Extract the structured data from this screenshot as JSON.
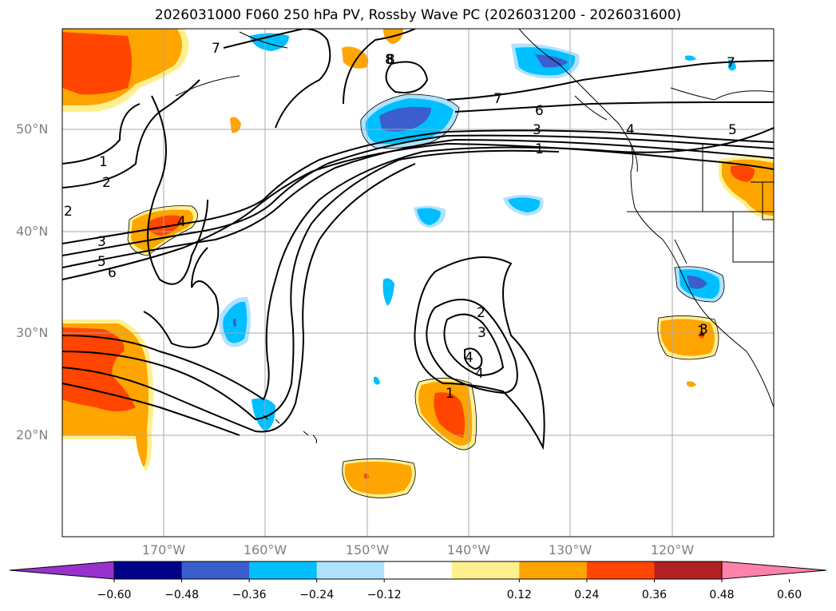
{
  "title": "2026031000 F060 250 hPa PV, Rossby Wave PC (2026031200 - 2026031600)",
  "lat_labels": [
    "50°N",
    "40°N",
    "30°N",
    "20°N"
  ],
  "lon_labels": [
    "170°W",
    "160°W",
    "150°W",
    "140°W",
    "130°W",
    "120°W"
  ],
  "colorbar": {
    "ticks": [
      "−0.60",
      "−0.48",
      "−0.36",
      "−0.24",
      "−0.12",
      "0.12",
      "0.24",
      "0.36",
      "0.48",
      "0.60"
    ],
    "colors": [
      "#9932cc",
      "#00008b",
      "#3a5fcd",
      "#00bfff",
      "#b0e2ff",
      "#ffffff",
      "#fff08f",
      "#ffa500",
      "#ff4500",
      "#b22222",
      "#ff82ab"
    ]
  },
  "contour_labels": [
    "1",
    "2",
    "3",
    "5",
    "6",
    "7",
    "8",
    "1",
    "2",
    "3",
    "4",
    "6",
    "7",
    "1",
    "3",
    "4",
    "5",
    "2",
    "3",
    "4",
    "4",
    "1",
    "7",
    "8"
  ],
  "colors": {
    "orange": "#ffa500",
    "red": "#ff4500",
    "yellow": "#fff08f",
    "cyan": "#00bfff",
    "lightblue": "#b0e2ff",
    "blue": "#3a5fcd"
  }
}
